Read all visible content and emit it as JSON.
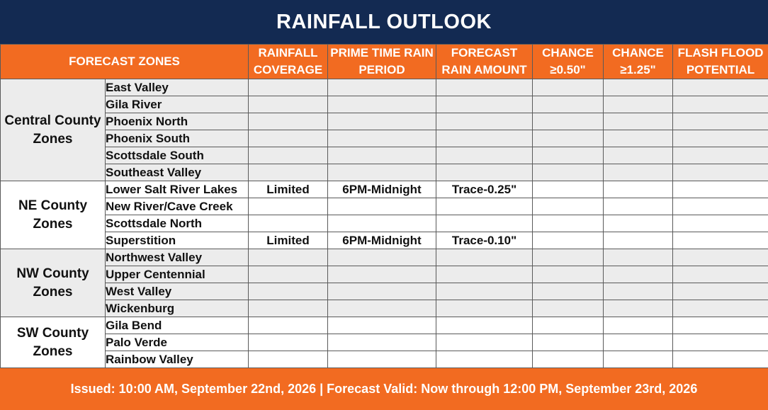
{
  "title": "RAINFALL OUTLOOK",
  "headers": {
    "zones": "FORECAST ZONES",
    "coverage": "RAINFALL COVERAGE",
    "period": "PRIME TIME RAIN PERIOD",
    "amount": "FORECAST RAIN AMOUNT",
    "chance050": "CHANCE ≥0.50\"",
    "chance125": "CHANCE ≥1.25\"",
    "flash": "FLASH FLOOD POTENTIAL"
  },
  "groups": [
    {
      "name": "Central County Zones",
      "zones": [
        {
          "name": "East Valley",
          "coverage": "",
          "period": "",
          "amount": "",
          "c050": "",
          "c125": "",
          "flash": ""
        },
        {
          "name": "Gila River",
          "coverage": "",
          "period": "",
          "amount": "",
          "c050": "",
          "c125": "",
          "flash": ""
        },
        {
          "name": "Phoenix North",
          "coverage": "",
          "period": "",
          "amount": "",
          "c050": "",
          "c125": "",
          "flash": ""
        },
        {
          "name": "Phoenix South",
          "coverage": "",
          "period": "",
          "amount": "",
          "c050": "",
          "c125": "",
          "flash": ""
        },
        {
          "name": "Scottsdale South",
          "coverage": "",
          "period": "",
          "amount": "",
          "c050": "",
          "c125": "",
          "flash": ""
        },
        {
          "name": "Southeast Valley",
          "coverage": "",
          "period": "",
          "amount": "",
          "c050": "",
          "c125": "",
          "flash": ""
        }
      ]
    },
    {
      "name": "NE County Zones",
      "zones": [
        {
          "name": "Lower Salt River Lakes",
          "coverage": "Limited",
          "period": "6PM-Midnight",
          "amount": "Trace-0.25\"",
          "c050": "",
          "c125": "",
          "flash": ""
        },
        {
          "name": "New River/Cave Creek",
          "coverage": "",
          "period": "",
          "amount": "",
          "c050": "",
          "c125": "",
          "flash": ""
        },
        {
          "name": "Scottsdale North",
          "coverage": "",
          "period": "",
          "amount": "",
          "c050": "",
          "c125": "",
          "flash": ""
        },
        {
          "name": "Superstition",
          "coverage": "Limited",
          "period": "6PM-Midnight",
          "amount": "Trace-0.10\"",
          "c050": "",
          "c125": "",
          "flash": ""
        }
      ]
    },
    {
      "name": "NW County Zones",
      "zones": [
        {
          "name": "Northwest Valley",
          "coverage": "",
          "period": "",
          "amount": "",
          "c050": "",
          "c125": "",
          "flash": ""
        },
        {
          "name": "Upper Centennial",
          "coverage": "",
          "period": "",
          "amount": "",
          "c050": "",
          "c125": "",
          "flash": ""
        },
        {
          "name": "West Valley",
          "coverage": "",
          "period": "",
          "amount": "",
          "c050": "",
          "c125": "",
          "flash": ""
        },
        {
          "name": "Wickenburg",
          "coverage": "",
          "period": "",
          "amount": "",
          "c050": "",
          "c125": "",
          "flash": ""
        }
      ]
    },
    {
      "name": "SW County Zones",
      "zones": [
        {
          "name": "Gila Bend",
          "coverage": "",
          "period": "",
          "amount": "",
          "c050": "",
          "c125": "",
          "flash": ""
        },
        {
          "name": "Palo Verde",
          "coverage": "",
          "period": "",
          "amount": "",
          "c050": "",
          "c125": "",
          "flash": ""
        },
        {
          "name": "Rainbow Valley",
          "coverage": "",
          "period": "",
          "amount": "",
          "c050": "",
          "c125": "",
          "flash": ""
        }
      ]
    }
  ],
  "footer": "Issued: 10:00 AM, September 22nd, 2026 | Forecast Valid: Now through 12:00 PM, September 23rd, 2026",
  "colors": {
    "title_bg": "#132a52",
    "header_bg": "#f26b21",
    "row_gray": "#ececec",
    "row_white": "#ffffff"
  }
}
